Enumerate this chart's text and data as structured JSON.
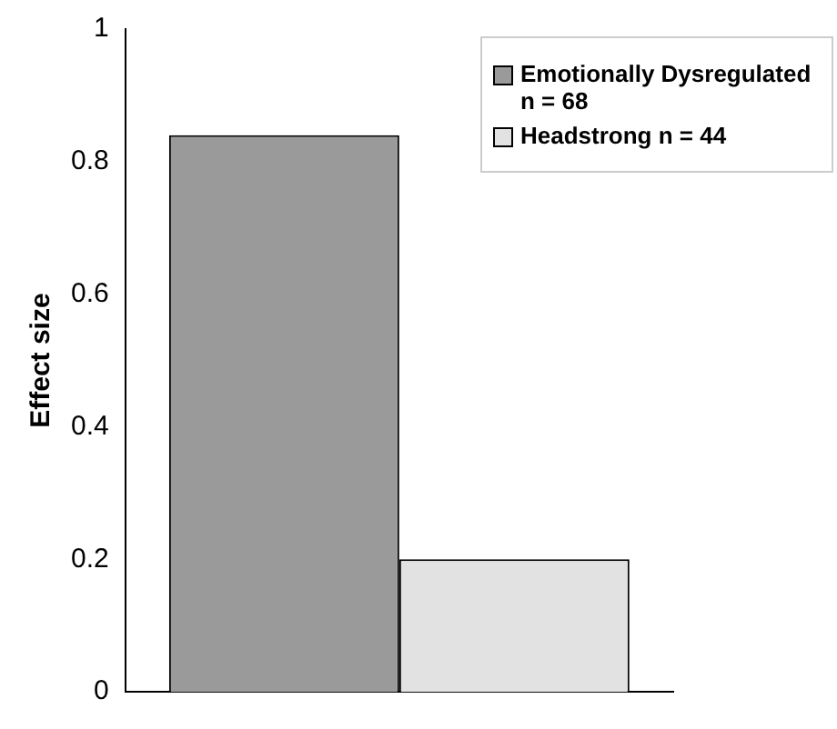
{
  "chart_data": {
    "type": "bar",
    "ylabel": "Effect size",
    "categories": [
      null
    ],
    "series": [
      {
        "name": "Emotionally Dysregulated n = 68",
        "color": "#9a9a9a",
        "values": [
          0.84
        ]
      },
      {
        "name": "Headstrong n = 44",
        "color": "#e2e2e2",
        "values": [
          0.2
        ]
      }
    ],
    "ylim": [
      0,
      1
    ],
    "yticks": [
      0,
      0.2,
      0.4,
      0.6,
      0.8,
      1
    ],
    "grid": false,
    "legend": "top right"
  }
}
